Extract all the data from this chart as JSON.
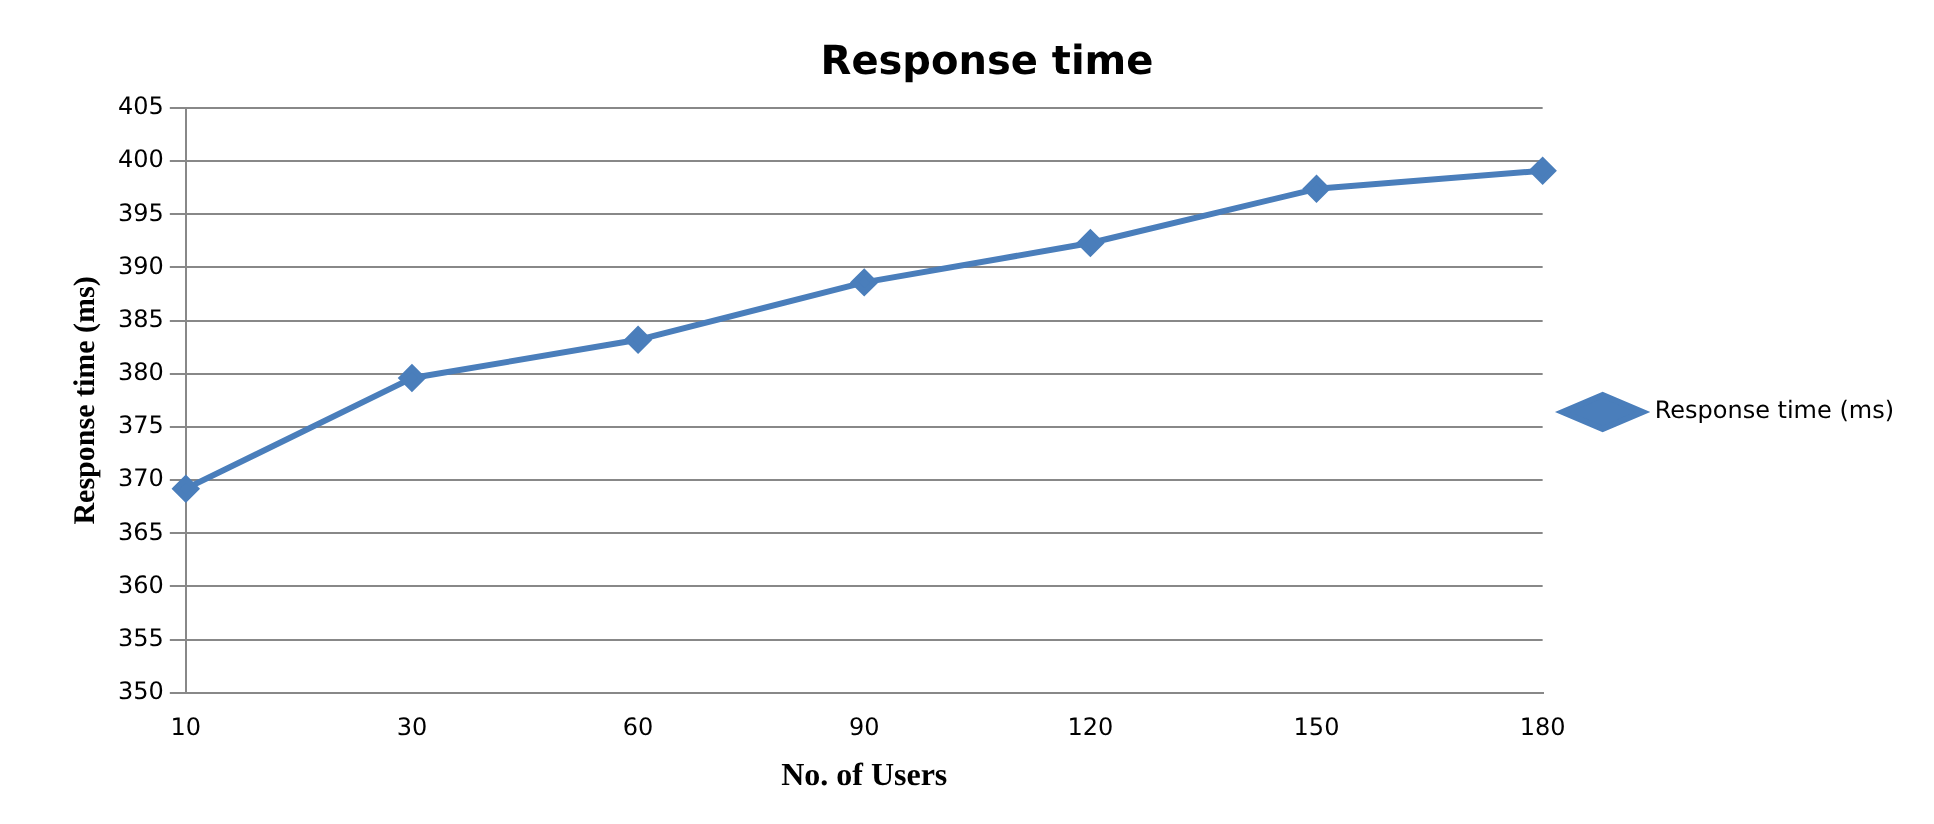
{
  "chart_data": {
    "type": "line",
    "title": "Response time",
    "xlabel": "No. of Users",
    "ylabel": "Response time (ms)",
    "categories": [
      "10",
      "30",
      "60",
      "90",
      "120",
      "150",
      "180"
    ],
    "series": [
      {
        "name": "Response time (ms)",
        "color": "#4a7ebb",
        "values": [
          369.2,
          379.6,
          383.2,
          388.6,
          392.3,
          397.4,
          399.1
        ]
      }
    ],
    "ylim": [
      350,
      405
    ],
    "yticks": [
      350,
      355,
      360,
      365,
      370,
      375,
      380,
      385,
      390,
      395,
      400,
      405
    ],
    "grid": "y",
    "legend": "right",
    "marker": "diamond"
  }
}
